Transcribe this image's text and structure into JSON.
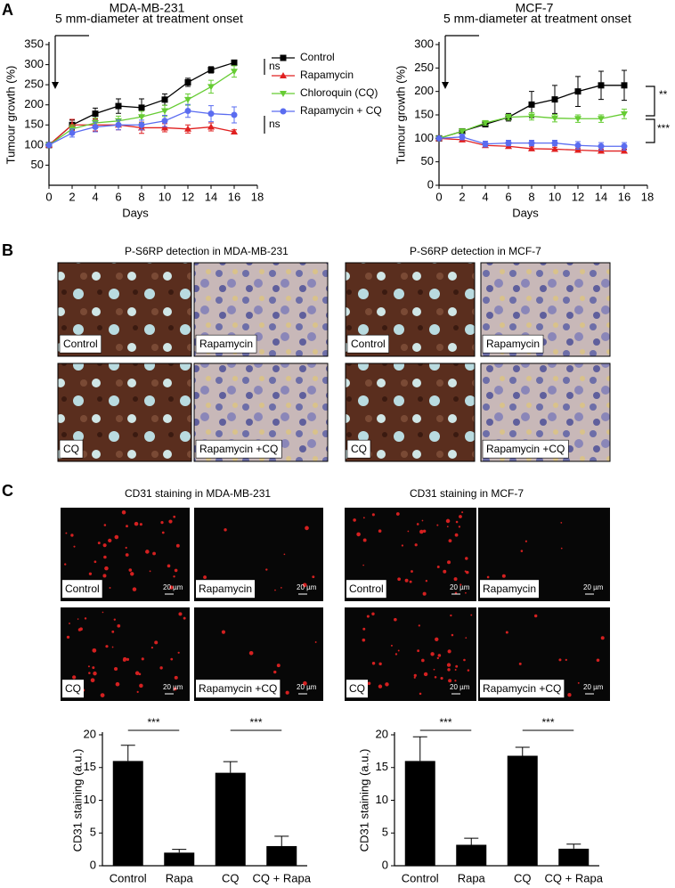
{
  "panel_labels": [
    "A",
    "B",
    "C"
  ],
  "chart_data": [
    {
      "type": "line",
      "title": "MDA-MB-231",
      "xlabel": "Days",
      "ylabel": "Tumour growth (%)",
      "x": [
        0,
        2,
        4,
        6,
        8,
        10,
        12,
        14,
        16
      ],
      "series": [
        {
          "name": "Control",
          "color": "#000000",
          "marker": "square",
          "values": [
            100,
            150,
            178,
            197,
            193,
            213,
            256,
            287,
            305
          ],
          "errors": [
            0,
            12,
            14,
            18,
            22,
            14,
            10,
            8,
            6
          ]
        },
        {
          "name": "Rapamycin",
          "color": "#e02020",
          "marker": "triangle",
          "values": [
            100,
            150,
            150,
            150,
            143,
            143,
            140,
            145,
            133
          ],
          "errors": [
            0,
            14,
            15,
            12,
            14,
            10,
            10,
            10,
            5
          ]
        },
        {
          "name": "Chloroquin (CQ)",
          "color": "#66cc33",
          "marker": "triangle-down",
          "values": [
            100,
            140,
            155,
            160,
            170,
            185,
            213,
            245,
            283
          ],
          "errors": [
            0,
            10,
            12,
            12,
            14,
            14,
            14,
            16,
            14
          ]
        },
        {
          "name": "Rapamycin + CQ",
          "color": "#5a6cf0",
          "marker": "circle",
          "values": [
            100,
            130,
            145,
            150,
            150,
            160,
            185,
            178,
            175
          ],
          "errors": [
            0,
            10,
            12,
            12,
            12,
            14,
            16,
            20,
            20
          ]
        }
      ],
      "xlim": [
        0,
        18
      ],
      "xticks": [
        0,
        2,
        4,
        6,
        8,
        10,
        12,
        14,
        16,
        18
      ],
      "ylim": [
        0,
        350
      ],
      "yticks": [
        50,
        100,
        150,
        200,
        250,
        300,
        350
      ],
      "legend": "right",
      "annotations": [
        "5 mm-diameter at treatment onset",
        "ns",
        "ns"
      ]
    },
    {
      "type": "line",
      "title": "MCF-7",
      "xlabel": "Days",
      "ylabel": "Tumour growth (%)",
      "x": [
        0,
        2,
        4,
        6,
        8,
        10,
        12,
        14,
        16
      ],
      "series": [
        {
          "color": "#000000",
          "marker": "square",
          "values": [
            100,
            115,
            130,
            145,
            172,
            183,
            200,
            213,
            213
          ],
          "errors": [
            0,
            5,
            5,
            8,
            28,
            30,
            32,
            30,
            32
          ]
        },
        {
          "color": "#e02020",
          "marker": "triangle",
          "values": [
            100,
            97,
            85,
            83,
            78,
            77,
            75,
            73,
            73
          ],
          "errors": [
            0,
            4,
            4,
            4,
            4,
            4,
            4,
            4,
            4
          ]
        },
        {
          "color": "#66cc33",
          "marker": "triangle-down",
          "values": [
            100,
            115,
            133,
            145,
            147,
            143,
            142,
            142,
            152
          ],
          "errors": [
            0,
            5,
            5,
            6,
            8,
            8,
            8,
            8,
            10
          ]
        },
        {
          "color": "#5a6cf0",
          "marker": "circle",
          "values": [
            100,
            103,
            88,
            90,
            90,
            90,
            85,
            83,
            83
          ],
          "errors": [
            0,
            6,
            6,
            6,
            6,
            6,
            8,
            8,
            8
          ]
        }
      ],
      "xlim": [
        0,
        18
      ],
      "xticks": [
        0,
        2,
        4,
        6,
        8,
        10,
        12,
        14,
        16,
        18
      ],
      "ylim": [
        0,
        300
      ],
      "yticks": [
        0,
        50,
        100,
        150,
        200,
        250,
        300
      ],
      "annotations": [
        "5 mm-diameter at treatment onset",
        "**",
        "***"
      ]
    },
    {
      "type": "bar",
      "ylabel": "CD31 staining (a.u.)",
      "color": "#000000",
      "categories": [
        "Control",
        "Rapa",
        "CQ",
        "CQ + Rapa"
      ],
      "values": [
        16,
        2,
        14.2,
        3
      ],
      "errors": [
        2.4,
        0.5,
        1.7,
        1.5
      ],
      "ylim": [
        0,
        20
      ],
      "yticks": [
        0,
        5,
        10,
        15,
        20
      ],
      "annotations": [
        "***",
        "***"
      ]
    },
    {
      "type": "bar",
      "ylabel": "CD31 staining (a.u.)",
      "color": "#000000",
      "categories": [
        "Control",
        "Rapa",
        "CQ",
        "CQ + Rapa"
      ],
      "values": [
        16,
        3.2,
        16.8,
        2.6
      ],
      "errors": [
        3.7,
        1,
        1.3,
        0.7
      ],
      "ylim": [
        0,
        20
      ],
      "yticks": [
        0,
        5,
        10,
        15,
        20
      ],
      "annotations": [
        "***",
        "***"
      ]
    }
  ],
  "histology": [
    {
      "title": "P-S6RP detection in MDA-MB-231",
      "images": [
        "Control",
        "Rapamycin",
        "CQ",
        "Rapamycin +CQ"
      ]
    },
    {
      "title": "P-S6RP detection in MCF-7",
      "images": [
        "Control",
        "Rapamycin",
        "CQ",
        "Rapamycin +CQ"
      ]
    }
  ],
  "cd31": [
    {
      "title": "CD31 staining in MDA-MB-231",
      "images": [
        "Control",
        "Rapamycin",
        "CQ",
        "Rapamycin +CQ"
      ],
      "scale": "20 µm"
    },
    {
      "title": "CD31 staining in MCF-7",
      "images": [
        "Control",
        "Rapamycin",
        "CQ",
        "Rapamycin +CQ"
      ],
      "scale": "20 µm"
    }
  ]
}
